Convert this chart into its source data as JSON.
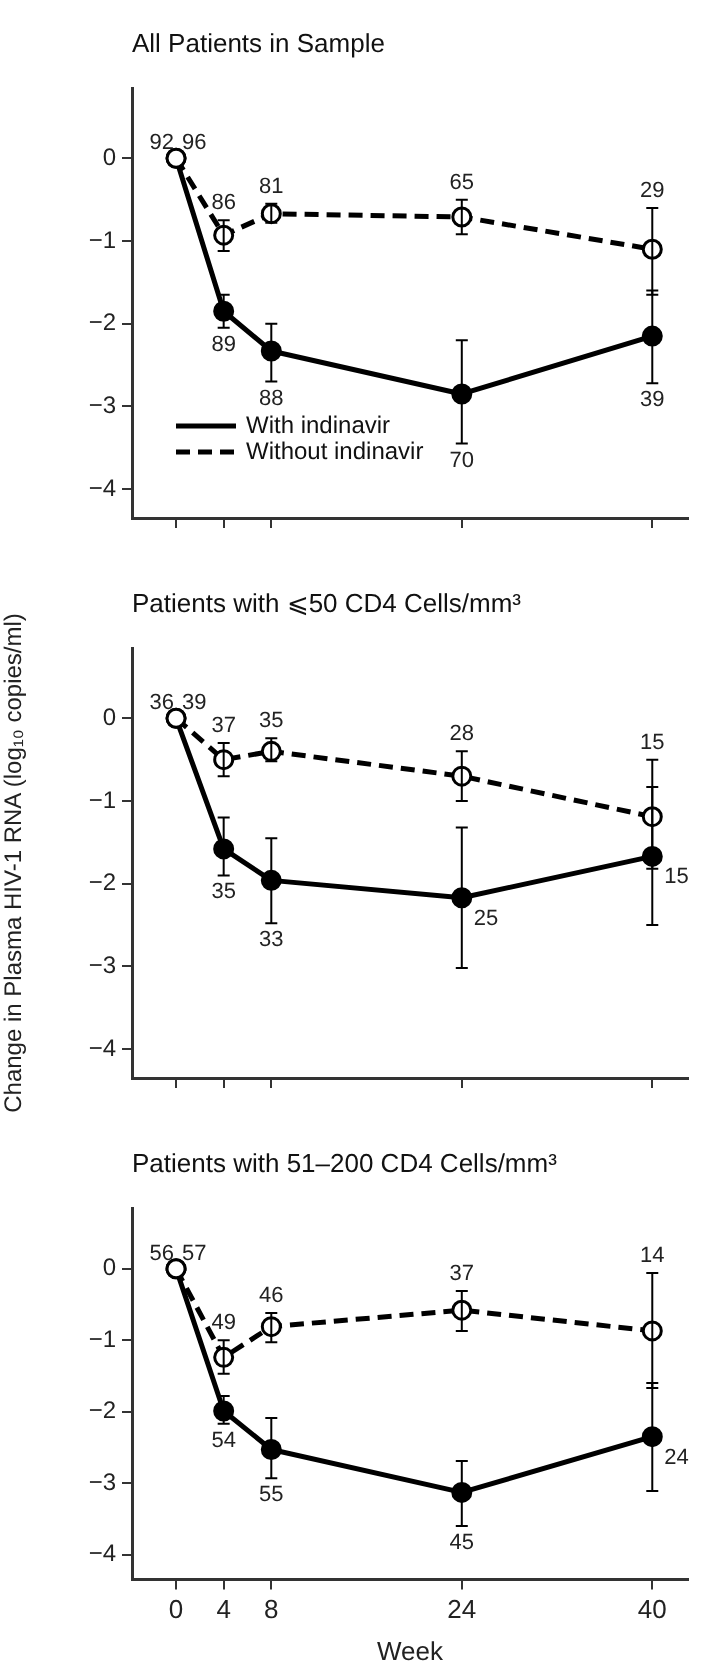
{
  "chart_data": [
    {
      "type": "line",
      "title": "All Patients in Sample",
      "x": [
        0,
        4,
        8,
        24,
        40
      ],
      "xlim": [
        -3.7,
        43
      ],
      "xticks": [
        0,
        4,
        8,
        24,
        40
      ],
      "ylim": [
        -4.35,
        0.85
      ],
      "yticks": [
        {
          "value": 0,
          "label": "0"
        },
        {
          "value": -1,
          "label": "−1"
        },
        {
          "value": -2,
          "label": "−2"
        },
        {
          "value": -3,
          "label": "−3"
        },
        {
          "value": -4,
          "label": "−4"
        }
      ],
      "tick_labels": "y",
      "grid": false,
      "legend": "bottom left",
      "marker": "circle",
      "series": [
        {
          "name": "With indinavir",
          "color": "#000000",
          "line_style": "solid",
          "values": [
            0,
            -1.85,
            -2.33,
            -2.85,
            -2.15
          ],
          "errors": [
            null,
            [
              -2.05,
              -1.65
            ],
            [
              -2.7,
              -2.0
            ],
            [
              -3.45,
              -2.2
            ],
            [
              -2.72,
              -1.6
            ]
          ]
        },
        {
          "name": "Without indinavir",
          "color": "#000000",
          "line_style": "dashed",
          "values": [
            0,
            -0.93,
            -0.67,
            -0.71,
            -1.1
          ],
          "errors": [
            null,
            [
              -1.12,
              -0.75
            ],
            [
              -0.78,
              -0.55
            ],
            [
              -0.92,
              -0.5
            ],
            [
              -1.65,
              -0.6
            ]
          ]
        }
      ],
      "annotations": [
        {
          "text": "92",
          "x": 0,
          "y": 0
        },
        {
          "text": "89",
          "x": 4,
          "y": -1.85
        },
        {
          "text": "88",
          "x": 8,
          "y": -2.33
        },
        {
          "text": "70",
          "x": 24,
          "y": -2.85
        },
        {
          "text": "39",
          "x": 40,
          "y": -2.15
        },
        {
          "text": "96",
          "x": 0,
          "y": 0
        },
        {
          "text": "86",
          "x": 4,
          "y": -0.93
        },
        {
          "text": "81",
          "x": 8,
          "y": -0.67
        },
        {
          "text": "65",
          "x": 24,
          "y": -0.71
        },
        {
          "text": "29",
          "x": 40,
          "y": -1.1
        }
      ]
    },
    {
      "type": "line",
      "title": "Patients with ⩽50 CD4 Cells/mm³",
      "ylabel": "Change in Plasma HIV-1 RNA (log₁₀ copies/ml)",
      "x": [
        0,
        4,
        8,
        24,
        40
      ],
      "xlim": [
        -3.7,
        43
      ],
      "xticks": [
        0,
        4,
        8,
        24,
        40
      ],
      "ylim": [
        -4.35,
        0.85
      ],
      "yticks": [
        {
          "value": 0,
          "label": "0"
        },
        {
          "value": -1,
          "label": "−1"
        },
        {
          "value": -2,
          "label": "−2"
        },
        {
          "value": -3,
          "label": "−3"
        },
        {
          "value": -4,
          "label": "−4"
        }
      ],
      "tick_labels": "y",
      "grid": false,
      "marker": "circle",
      "series": [
        {
          "color": "#000000",
          "line_style": "solid",
          "values": [
            0,
            -1.58,
            -1.96,
            -2.17,
            -1.67
          ],
          "errors": [
            null,
            [
              -1.9,
              -1.2
            ],
            [
              -2.48,
              -1.45
            ],
            [
              -3.02,
              -1.32
            ],
            [
              -2.5,
              -0.83
            ]
          ]
        },
        {
          "color": "#000000",
          "line_style": "dashed",
          "values": [
            0,
            -0.5,
            -0.4,
            -0.7,
            -1.19
          ],
          "errors": [
            null,
            [
              -0.7,
              -0.3
            ],
            [
              -0.52,
              -0.24
            ],
            [
              -1.0,
              -0.4
            ],
            [
              -1.82,
              -0.5
            ]
          ]
        }
      ],
      "annotations": [
        {
          "text": "36",
          "x": 0,
          "y": 0
        },
        {
          "text": "35",
          "x": 4,
          "y": -1.58
        },
        {
          "text": "33",
          "x": 8,
          "y": -1.96
        },
        {
          "text": "25",
          "x": 24,
          "y": -2.17
        },
        {
          "text": "15",
          "x": 40,
          "y": -1.67
        },
        {
          "text": "39",
          "x": 0,
          "y": 0
        },
        {
          "text": "37",
          "x": 4,
          "y": -0.5
        },
        {
          "text": "35",
          "x": 8,
          "y": -0.4
        },
        {
          "text": "28",
          "x": 24,
          "y": -0.7
        },
        {
          "text": "15",
          "x": 40,
          "y": -1.19
        }
      ]
    },
    {
      "type": "line",
      "title": "Patients with 51–200 CD4 Cells/mm³",
      "xlabel": "Week",
      "x": [
        0,
        4,
        8,
        24,
        40
      ],
      "xlim": [
        -3.7,
        43
      ],
      "xticks": [
        0,
        4,
        8,
        24,
        40
      ],
      "ylim": [
        -4.35,
        0.85
      ],
      "yticks": [
        {
          "value": 0,
          "label": "0"
        },
        {
          "value": -1,
          "label": "−1"
        },
        {
          "value": -2,
          "label": "−2"
        },
        {
          "value": -3,
          "label": "−3"
        },
        {
          "value": -4,
          "label": "−4"
        }
      ],
      "grid": false,
      "marker": "circle",
      "series": [
        {
          "color": "#000000",
          "line_style": "solid",
          "values": [
            0,
            -1.99,
            -2.53,
            -3.13,
            -2.35
          ],
          "errors": [
            null,
            [
              -2.17,
              -1.78
            ],
            [
              -2.93,
              -2.09
            ],
            [
              -3.6,
              -2.69
            ],
            [
              -3.11,
              -1.6
            ]
          ]
        },
        {
          "color": "#000000",
          "line_style": "dashed",
          "values": [
            0,
            -1.24,
            -0.81,
            -0.58,
            -0.87
          ],
          "errors": [
            null,
            [
              -1.47,
              -1.0
            ],
            [
              -1.03,
              -0.62
            ],
            [
              -0.87,
              -0.31
            ],
            [
              -1.67,
              -0.06
            ]
          ]
        }
      ],
      "annotations": [
        {
          "text": "56",
          "x": 0,
          "y": 0
        },
        {
          "text": "54",
          "x": 4,
          "y": -1.99
        },
        {
          "text": "55",
          "x": 8,
          "y": -2.53
        },
        {
          "text": "45",
          "x": 24,
          "y": -3.13
        },
        {
          "text": "24",
          "x": 40,
          "y": -2.35
        },
        {
          "text": "57",
          "x": 0,
          "y": 0
        },
        {
          "text": "49",
          "x": 4,
          "y": -1.24
        },
        {
          "text": "46",
          "x": 8,
          "y": -0.81
        },
        {
          "text": "37",
          "x": 24,
          "y": -0.58
        },
        {
          "text": "14",
          "x": 40,
          "y": -0.87
        }
      ]
    }
  ]
}
